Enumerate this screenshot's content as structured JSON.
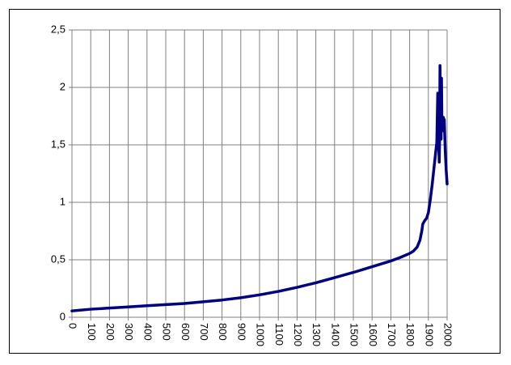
{
  "chart_data": {
    "type": "line",
    "title": "",
    "xlabel": "",
    "ylabel": "",
    "xlim": [
      0,
      2000
    ],
    "ylim": [
      0,
      2.5
    ],
    "grid": true,
    "legend": "none",
    "x_ticks": [
      0,
      100,
      200,
      300,
      400,
      500,
      600,
      700,
      800,
      900,
      1000,
      1100,
      1200,
      1300,
      1400,
      1500,
      1600,
      1700,
      1800,
      1900,
      2000
    ],
    "x_tick_labels": [
      "0",
      "100",
      "200",
      "300",
      "400",
      "500",
      "600",
      "700",
      "800",
      "900",
      "1000",
      "1100",
      "1200",
      "1300",
      "1400",
      "1500",
      "1600",
      "1700",
      "1800",
      "1900",
      "2000"
    ],
    "y_ticks": [
      0,
      0.5,
      1,
      1.5,
      2,
      2.5
    ],
    "y_tick_labels": [
      "0",
      "0,5",
      "1",
      "1,5",
      "2",
      "2,5"
    ],
    "colors": {
      "line": "#000080",
      "grid": "#808080",
      "axis": "#808080"
    },
    "series": [
      {
        "x": [
          0,
          100,
          200,
          300,
          400,
          500,
          600,
          700,
          800,
          900,
          1000,
          1100,
          1200,
          1300,
          1400,
          1500,
          1600,
          1700,
          1750,
          1800,
          1820,
          1840,
          1855,
          1865,
          1870,
          1880,
          1890,
          1900,
          1910,
          1920,
          1930,
          1940,
          1945,
          1950,
          1955,
          1958,
          1960,
          1962,
          1965,
          1968,
          1970,
          1972,
          1975,
          1978,
          1980,
          1982,
          1985,
          1988,
          1990,
          1995,
          2000
        ],
        "y": [
          0.055,
          0.07,
          0.08,
          0.09,
          0.1,
          0.11,
          0.12,
          0.135,
          0.15,
          0.17,
          0.195,
          0.225,
          0.26,
          0.3,
          0.345,
          0.39,
          0.44,
          0.49,
          0.52,
          0.555,
          0.575,
          0.61,
          0.67,
          0.75,
          0.81,
          0.84,
          0.86,
          0.91,
          1.02,
          1.15,
          1.3,
          1.45,
          1.52,
          1.95,
          1.5,
          1.35,
          1.55,
          2.19,
          1.82,
          1.55,
          2.08,
          1.72,
          1.69,
          1.72,
          1.74,
          1.62,
          1.72,
          1.55,
          1.45,
          1.28,
          1.16
        ]
      }
    ]
  }
}
